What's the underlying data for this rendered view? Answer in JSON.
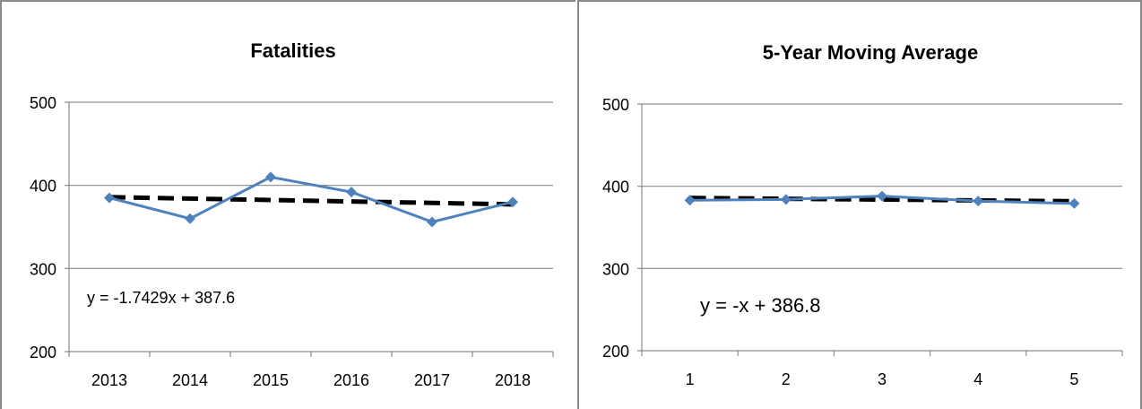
{
  "chart_data": [
    {
      "type": "line",
      "title": "Fatalities",
      "xlabel": "",
      "ylabel": "",
      "categories": [
        "2013",
        "2014",
        "2015",
        "2016",
        "2017",
        "2018"
      ],
      "series": [
        {
          "values": [
            385,
            360,
            410,
            392,
            356,
            380
          ],
          "color": "#4f81bd"
        }
      ],
      "trendline": {
        "values": [
          385.9,
          384.1,
          382.4,
          380.6,
          378.9,
          377.1
        ],
        "color": "#000000",
        "style": "dashed"
      },
      "equation": "y = -1.7429x + 387.6",
      "ylim": [
        200,
        500
      ],
      "yticks": [
        "200",
        "300",
        "400",
        "500"
      ],
      "grid": true
    },
    {
      "type": "line",
      "title": "5-Year Moving Average",
      "xlabel": "",
      "ylabel": "",
      "categories": [
        "1",
        "2",
        "3",
        "4",
        "5"
      ],
      "series": [
        {
          "values": [
            383,
            384,
            388,
            382,
            379
          ],
          "color": "#4f81bd"
        }
      ],
      "trendline": {
        "values": [
          385.8,
          384.8,
          383.8,
          382.8,
          381.8
        ],
        "color": "#000000",
        "style": "dashed"
      },
      "equation": "y = -x + 386.8",
      "ylim": [
        200,
        500
      ],
      "yticks": [
        "200",
        "300",
        "400",
        "500"
      ],
      "grid": true
    }
  ]
}
